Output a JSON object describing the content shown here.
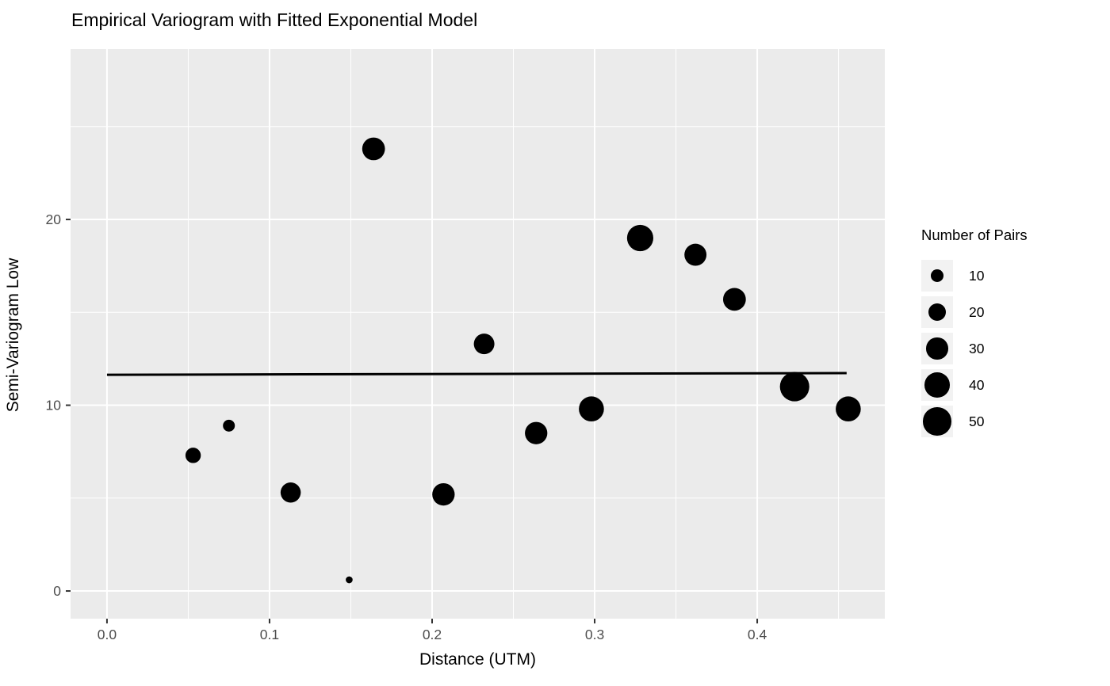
{
  "chart_data": {
    "type": "scatter",
    "title": "Empirical Variogram with Fitted Exponential Model",
    "xlabel": "Distance (UTM)",
    "ylabel": "Semi-Variogram Low",
    "xlim": [
      -0.0224,
      0.4785
    ],
    "ylim": [
      -1.49,
      29.17
    ],
    "x_ticks": [
      0.0,
      0.1,
      0.2,
      0.3,
      0.4
    ],
    "x_tick_labels": [
      "0.0",
      "0.1",
      "0.2",
      "0.3",
      "0.4"
    ],
    "x_minor_ticks": [
      0.05,
      0.15,
      0.25,
      0.35,
      0.45
    ],
    "y_ticks": [
      0,
      10,
      20
    ],
    "y_tick_labels": [
      "0",
      "10",
      "20"
    ],
    "y_minor_ticks": [
      5,
      15,
      25
    ],
    "grid": true,
    "points": [
      {
        "x": 0.053,
        "y": 7.3,
        "pairs": 15
      },
      {
        "x": 0.075,
        "y": 8.9,
        "pairs": 9
      },
      {
        "x": 0.113,
        "y": 5.3,
        "pairs": 26
      },
      {
        "x": 0.149,
        "y": 0.6,
        "pairs": 3
      },
      {
        "x": 0.164,
        "y": 23.8,
        "pairs": 33
      },
      {
        "x": 0.207,
        "y": 5.2,
        "pairs": 32
      },
      {
        "x": 0.232,
        "y": 13.3,
        "pairs": 27
      },
      {
        "x": 0.264,
        "y": 8.5,
        "pairs": 32
      },
      {
        "x": 0.298,
        "y": 9.8,
        "pairs": 40
      },
      {
        "x": 0.328,
        "y": 19.0,
        "pairs": 44
      },
      {
        "x": 0.362,
        "y": 18.1,
        "pairs": 31
      },
      {
        "x": 0.386,
        "y": 15.7,
        "pairs": 33
      },
      {
        "x": 0.423,
        "y": 11.0,
        "pairs": 55
      },
      {
        "x": 0.456,
        "y": 9.8,
        "pairs": 40
      }
    ],
    "fitted_line": {
      "x_start": 0.0,
      "y_start": 11.64,
      "x_end": 0.455,
      "y_end": 11.73
    },
    "legend": {
      "title": "Number of Pairs",
      "position": "right",
      "entries": [
        {
          "label": "10",
          "value": 10
        },
        {
          "label": "20",
          "value": 20
        },
        {
          "label": "30",
          "value": 30
        },
        {
          "label": "40",
          "value": 40
        },
        {
          "label": "50",
          "value": 50
        }
      ]
    },
    "colors": {
      "panel_bg": "#EBEBEB",
      "grid": "#FFFFFF",
      "point": "#000000",
      "line": "#000000",
      "tick_text": "#4D4D4D",
      "tick_mark": "#333333",
      "legend_key_bg": "#F2F2F2"
    }
  }
}
